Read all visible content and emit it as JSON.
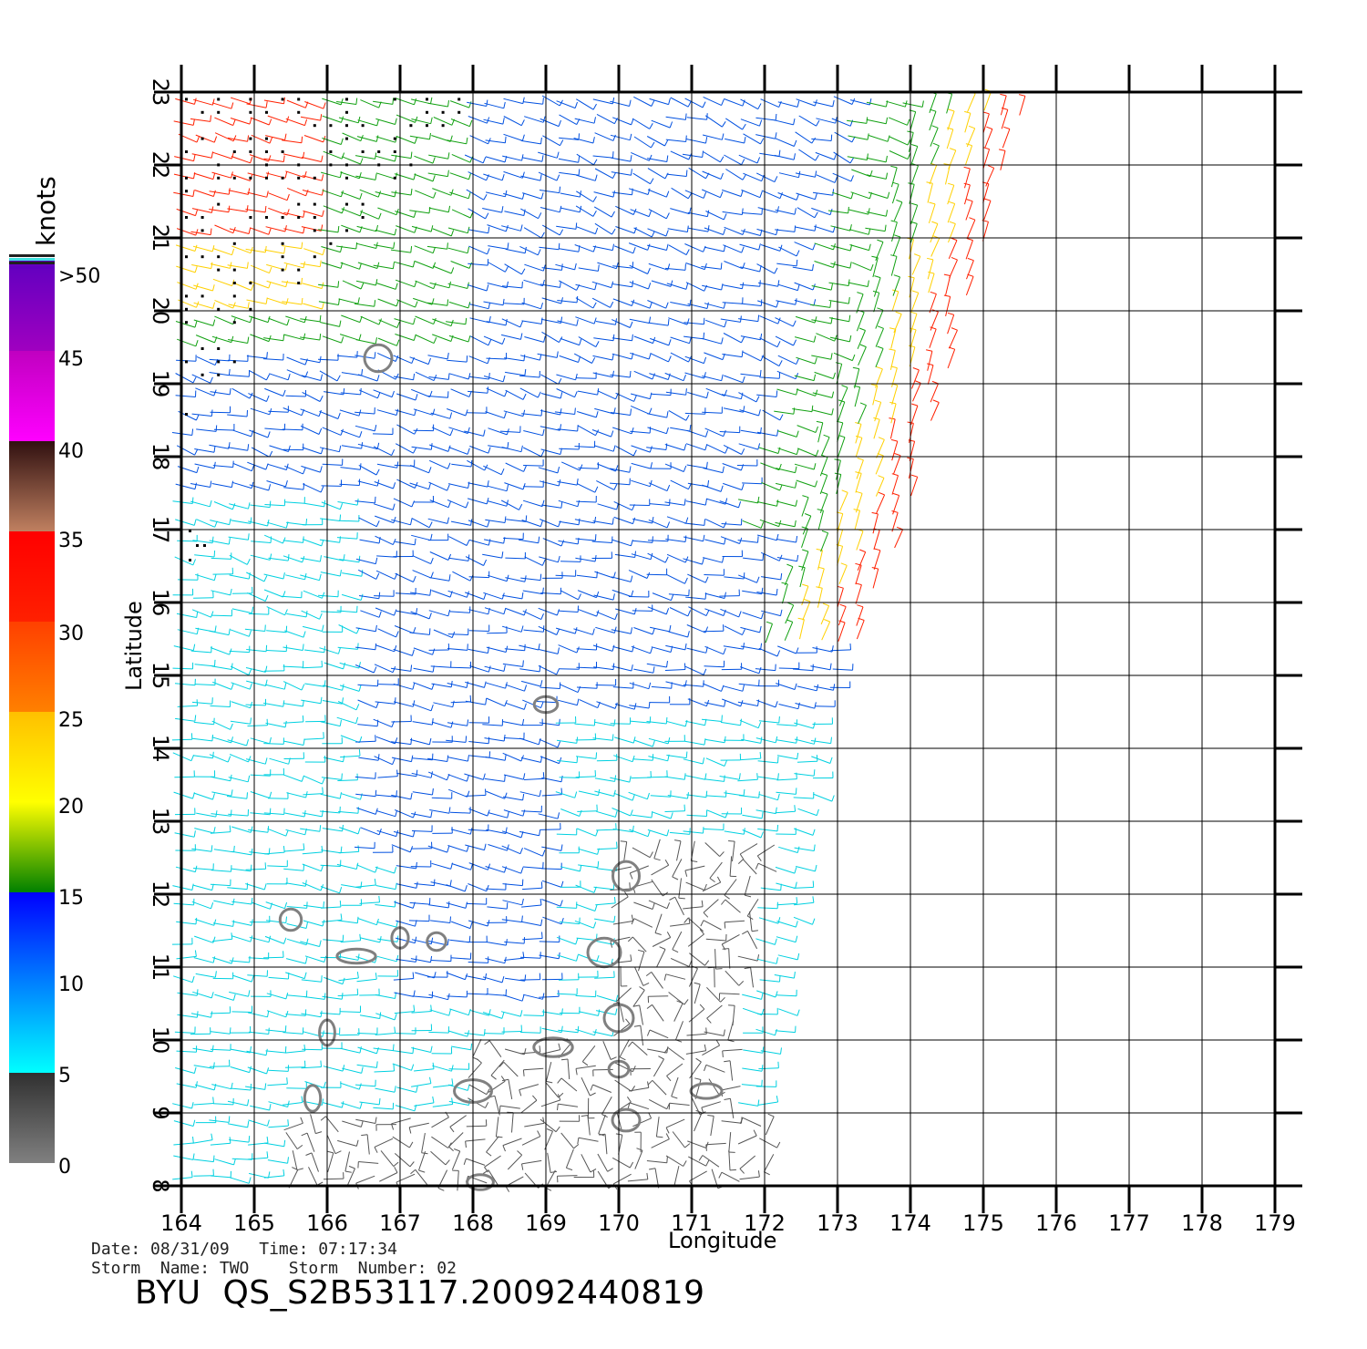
{
  "map": {
    "lon_ticks": [
      164,
      165,
      166,
      167,
      168,
      169,
      170,
      171,
      172,
      173,
      174,
      175,
      176,
      177,
      178,
      179
    ],
    "lat_ticks": [
      8,
      9,
      10,
      11,
      12,
      13,
      14,
      15,
      16,
      17,
      18,
      19,
      20,
      21,
      22,
      23
    ],
    "x_label": "Longitude",
    "y_label": "Latitude",
    "lon_range": [
      164,
      179
    ],
    "lat_range": [
      8,
      23
    ],
    "grid": true,
    "swath": {
      "edge": [
        [
          172.0,
          8.0
        ],
        [
          173.0,
          14.5
        ],
        [
          174.2,
          18.0
        ],
        [
          175.6,
          23.0
        ]
      ],
      "wind_field": "wind barbs colored by speed",
      "black_dots_region": "northwest corner (high wind / rain flag)"
    },
    "islands": [
      [
        165.5,
        11.65
      ],
      [
        166.4,
        11.15
      ],
      [
        167.0,
        11.4
      ],
      [
        167.5,
        11.35
      ],
      [
        166.7,
        19.35
      ],
      [
        168.0,
        9.3
      ],
      [
        169.0,
        14.6
      ],
      [
        170.0,
        10.3
      ],
      [
        169.8,
        11.2
      ],
      [
        169.1,
        9.9
      ],
      [
        170.0,
        9.6
      ],
      [
        171.2,
        9.3
      ],
      [
        165.8,
        9.2
      ],
      [
        166.0,
        10.1
      ],
      [
        170.1,
        8.9
      ],
      [
        168.1,
        8.05
      ],
      [
        170.1,
        12.25
      ]
    ],
    "colors": {
      "calm": "#555555",
      "light": "#00d0e0",
      "moderate": "#0050e0",
      "fresh": "#10a010",
      "strong": "#ffd000",
      "gale": "#ff2000",
      "flag": "#000000",
      "island": "#808080"
    }
  },
  "colorbar": {
    "unit": "knots",
    "tick_labels": [
      "0",
      "5",
      "10",
      "15",
      "20",
      "25",
      "30",
      "35",
      "40",
      "45",
      ">50"
    ],
    "stops": [
      {
        "from": 0,
        "to": 5,
        "colors": [
          "#808080",
          "#303030"
        ]
      },
      {
        "from": 5,
        "to": 10,
        "colors": [
          "#00ffff",
          "#0080ff"
        ]
      },
      {
        "from": 10,
        "to": 15,
        "colors": [
          "#0080ff",
          "#0000ff"
        ]
      },
      {
        "from": 15,
        "to": 20,
        "colors": [
          "#008000",
          "#ffff00"
        ]
      },
      {
        "from": 20,
        "to": 25,
        "colors": [
          "#ffff00",
          "#ffc000"
        ]
      },
      {
        "from": 25,
        "to": 30,
        "colors": [
          "#ff8000",
          "#ff4000"
        ]
      },
      {
        "from": 30,
        "to": 35,
        "colors": [
          "#ff2000",
          "#ff0000"
        ]
      },
      {
        "from": 35,
        "to": 40,
        "colors": [
          "#c08060",
          "#301010"
        ]
      },
      {
        "from": 40,
        "to": 45,
        "colors": [
          "#ff00ff",
          "#c000c0"
        ]
      },
      {
        "from": 45,
        "to": 50,
        "colors": [
          "#a000c0",
          "#6000c0"
        ]
      }
    ]
  },
  "info": {
    "date_time": "Date: 08/31/09   Time: 07:17:34",
    "storm": "Storm  Name: TWO    Storm  Number: 02",
    "product": "BYU  QS_S2B53117.20092440819"
  }
}
